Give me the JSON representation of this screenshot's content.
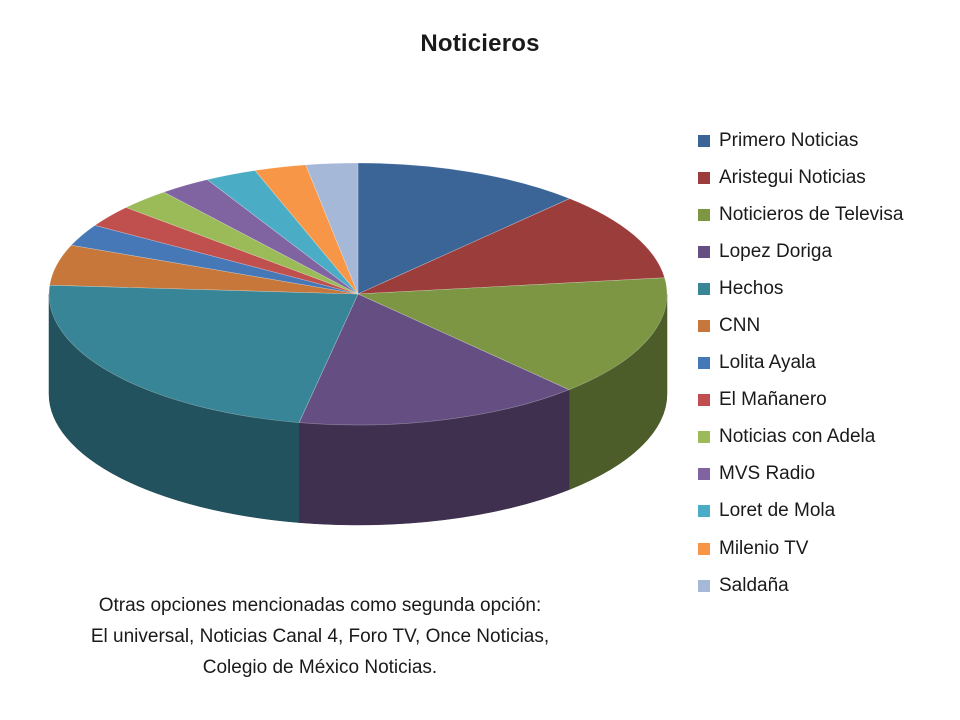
{
  "chart_data": {
    "type": "pie",
    "title": "Noticieros",
    "categories": [
      "Primero Noticias",
      "Aristegui Noticias",
      "Noticieros de Televisa",
      "Lopez Doriga",
      "Hechos",
      "CNN",
      "Lolita Ayala",
      "El Mañanero",
      "Noticias con Adela",
      "MVS Radio",
      "Loret de Mola",
      "Milenio TV",
      "Saldaña"
    ],
    "values": [
      12,
      11,
      15,
      15,
      23,
      5,
      2.7,
      2.7,
      2.7,
      2.7,
      2.7,
      2.7,
      2.7
    ],
    "colors": [
      "#3B6497",
      "#9A3D3B",
      "#7C9643",
      "#654E81",
      "#378596",
      "#C8773A",
      "#4678B7",
      "#C0504D",
      "#9BBB59",
      "#8064A2",
      "#4BACC6",
      "#F79646",
      "#A6B8D8"
    ],
    "legend_position": "right"
  },
  "footnote": {
    "lines": [
      "Otras opciones mencionadas como segunda opción:",
      "El universal, Noticias Canal 4, Foro TV, Once Noticias,",
      "Colegio de México Noticias."
    ]
  }
}
